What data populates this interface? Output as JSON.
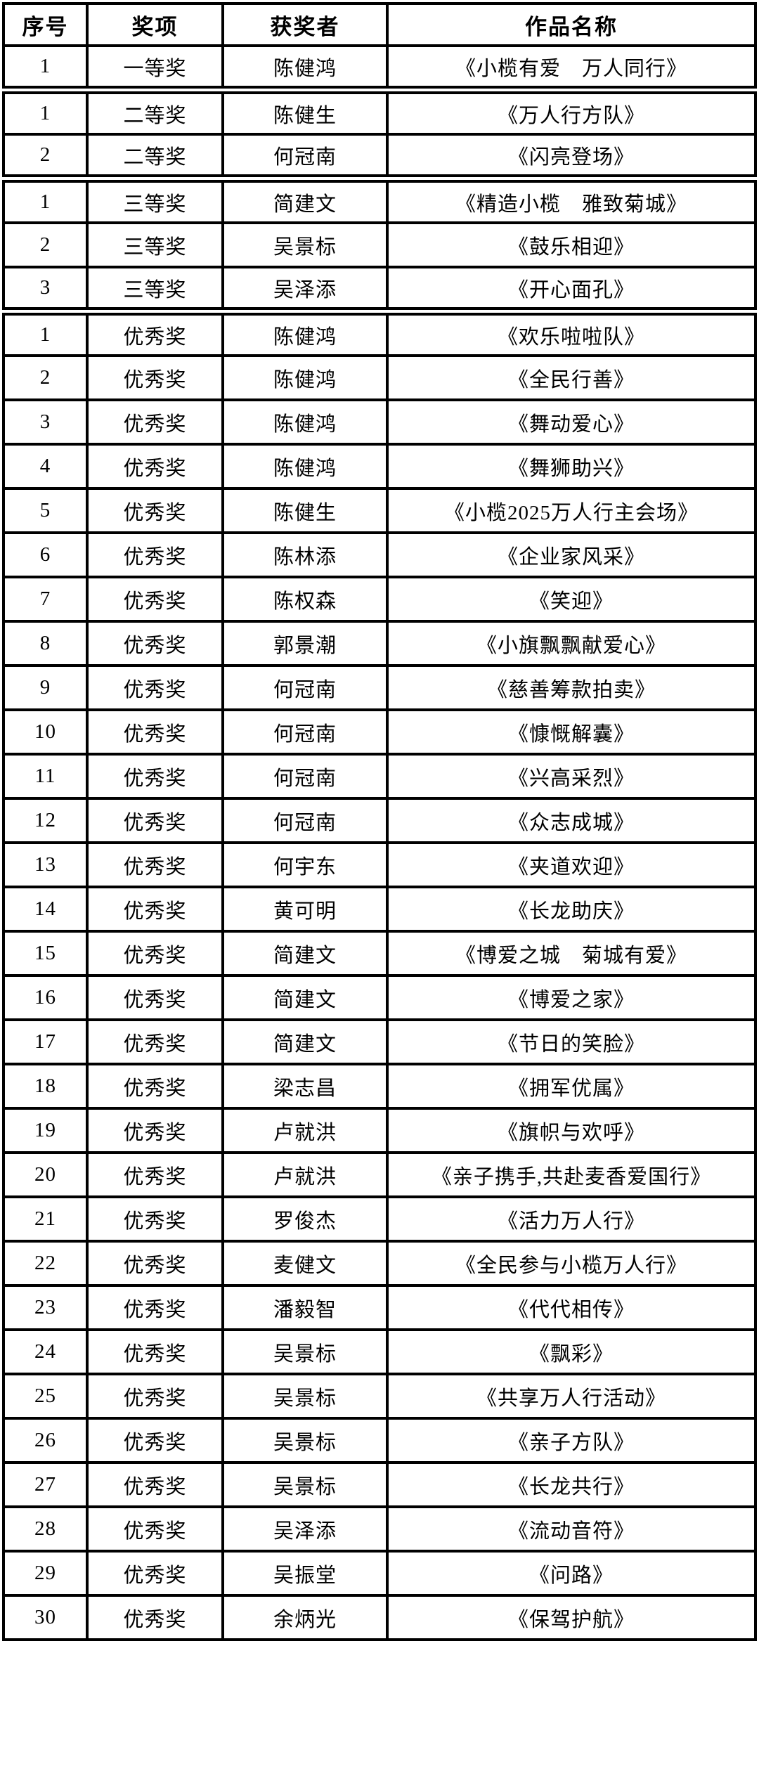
{
  "page": {
    "background_color": "#ffffff",
    "border_color": "#000000",
    "text_color": "#000000"
  },
  "table": {
    "columns": [
      {
        "key": "index",
        "label": "序号"
      },
      {
        "key": "award",
        "label": "奖项"
      },
      {
        "key": "winner",
        "label": "获奖者"
      },
      {
        "key": "title",
        "label": "作品名称"
      }
    ],
    "groups": [
      {
        "award_tier": "一等奖",
        "rows": [
          {
            "index": "1",
            "award": "一等奖",
            "winner": "陈健鸿",
            "title": "《小榄有爱　万人同行》"
          }
        ]
      },
      {
        "award_tier": "二等奖",
        "rows": [
          {
            "index": "1",
            "award": "二等奖",
            "winner": "陈健生",
            "title": "《万人行方队》"
          },
          {
            "index": "2",
            "award": "二等奖",
            "winner": "何冠南",
            "title": "《闪亮登场》"
          }
        ]
      },
      {
        "award_tier": "三等奖",
        "rows": [
          {
            "index": "1",
            "award": "三等奖",
            "winner": "简建文",
            "title": "《精造小榄　雅致菊城》"
          },
          {
            "index": "2",
            "award": "三等奖",
            "winner": "吴景标",
            "title": "《鼓乐相迎》"
          },
          {
            "index": "3",
            "award": "三等奖",
            "winner": "吴泽添",
            "title": "《开心面孔》"
          }
        ]
      },
      {
        "award_tier": "优秀奖",
        "rows": [
          {
            "index": "1",
            "award": "优秀奖",
            "winner": "陈健鸿",
            "title": "《欢乐啦啦队》"
          },
          {
            "index": "2",
            "award": "优秀奖",
            "winner": "陈健鸿",
            "title": "《全民行善》"
          },
          {
            "index": "3",
            "award": "优秀奖",
            "winner": "陈健鸿",
            "title": "《舞动爱心》"
          },
          {
            "index": "4",
            "award": "优秀奖",
            "winner": "陈健鸿",
            "title": "《舞狮助兴》"
          },
          {
            "index": "5",
            "award": "优秀奖",
            "winner": "陈健生",
            "title": "《小榄2025万人行主会场》"
          },
          {
            "index": "6",
            "award": "优秀奖",
            "winner": "陈林添",
            "title": "《企业家风采》"
          },
          {
            "index": "7",
            "award": "优秀奖",
            "winner": "陈权森",
            "title": "《笑迎》"
          },
          {
            "index": "8",
            "award": "优秀奖",
            "winner": "郭景潮",
            "title": "《小旗飘飘献爱心》"
          },
          {
            "index": "9",
            "award": "优秀奖",
            "winner": "何冠南",
            "title": "《慈善筹款拍卖》"
          },
          {
            "index": "10",
            "award": "优秀奖",
            "winner": "何冠南",
            "title": "《慷慨解囊》"
          },
          {
            "index": "11",
            "award": "优秀奖",
            "winner": "何冠南",
            "title": "《兴高采烈》"
          },
          {
            "index": "12",
            "award": "优秀奖",
            "winner": "何冠南",
            "title": "《众志成城》"
          },
          {
            "index": "13",
            "award": "优秀奖",
            "winner": "何宇东",
            "title": "《夹道欢迎》"
          },
          {
            "index": "14",
            "award": "优秀奖",
            "winner": "黄可明",
            "title": "《长龙助庆》"
          },
          {
            "index": "15",
            "award": "优秀奖",
            "winner": "简建文",
            "title": "《博爱之城　菊城有爱》"
          },
          {
            "index": "16",
            "award": "优秀奖",
            "winner": "简建文",
            "title": "《博爱之家》"
          },
          {
            "index": "17",
            "award": "优秀奖",
            "winner": "简建文",
            "title": "《节日的笑脸》"
          },
          {
            "index": "18",
            "award": "优秀奖",
            "winner": "梁志昌",
            "title": "《拥军优属》"
          },
          {
            "index": "19",
            "award": "优秀奖",
            "winner": "卢就洪",
            "title": "《旗帜与欢呼》"
          },
          {
            "index": "20",
            "award": "优秀奖",
            "winner": "卢就洪",
            "title": "《亲子携手,共赴麦香爱国行》"
          },
          {
            "index": "21",
            "award": "优秀奖",
            "winner": "罗俊杰",
            "title": "《活力万人行》"
          },
          {
            "index": "22",
            "award": "优秀奖",
            "winner": "麦健文",
            "title": "《全民参与小榄万人行》"
          },
          {
            "index": "23",
            "award": "优秀奖",
            "winner": "潘毅智",
            "title": "《代代相传》"
          },
          {
            "index": "24",
            "award": "优秀奖",
            "winner": "吴景标",
            "title": "《飘彩》"
          },
          {
            "index": "25",
            "award": "优秀奖",
            "winner": "吴景标",
            "title": "《共享万人行活动》"
          },
          {
            "index": "26",
            "award": "优秀奖",
            "winner": "吴景标",
            "title": "《亲子方队》"
          },
          {
            "index": "27",
            "award": "优秀奖",
            "winner": "吴景标",
            "title": "《长龙共行》"
          },
          {
            "index": "28",
            "award": "优秀奖",
            "winner": "吴泽添",
            "title": "《流动音符》"
          },
          {
            "index": "29",
            "award": "优秀奖",
            "winner": "吴振堂",
            "title": "《问路》"
          },
          {
            "index": "30",
            "award": "优秀奖",
            "winner": "余炳光",
            "title": "《保驾护航》"
          }
        ]
      }
    ]
  }
}
